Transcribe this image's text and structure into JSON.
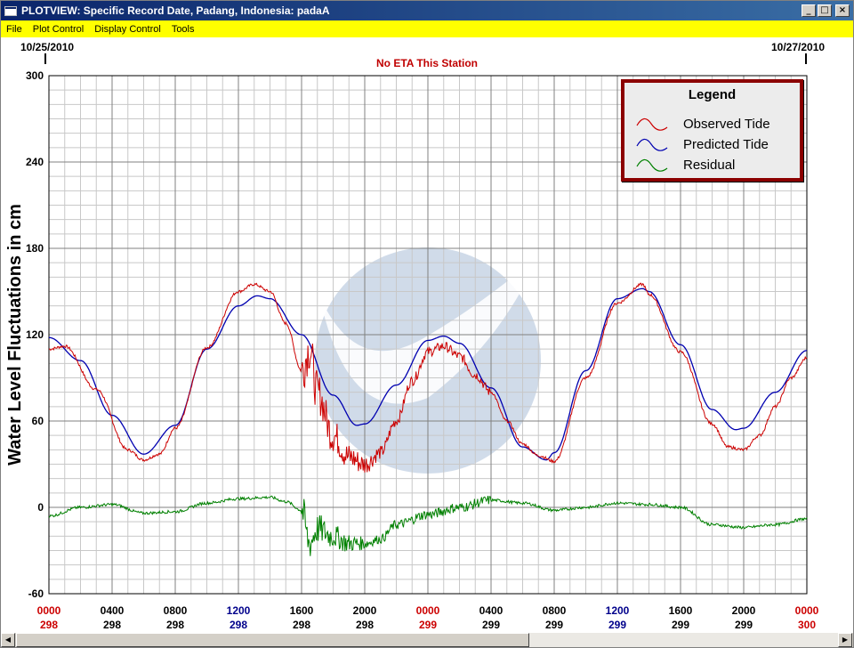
{
  "window": {
    "title": "PLOTVIEW: Specific Record Date, Padang, Indonesia: padaA",
    "controls": {
      "minimize": "_",
      "maximize": "□",
      "close": "×"
    }
  },
  "menu": [
    "File",
    "Plot Control",
    "Display Control",
    "Tools"
  ],
  "header": {
    "start_date": "10/25/2010",
    "end_date": "10/27/2010",
    "eta_text": "No ETA This Station"
  },
  "legend": {
    "title": "Legend",
    "items": [
      {
        "label": "Observed Tide",
        "color": "#cc0000"
      },
      {
        "label": "Predicted Tide",
        "color": "#0000b0"
      },
      {
        "label": "Residual",
        "color": "#008000"
      }
    ]
  },
  "colors": {
    "grid": "#a9a9a9",
    "observed": "#cc0000",
    "predicted": "#0000b0",
    "residual": "#008000",
    "tick_red": "#cc0000",
    "tick_blue": "#00008b"
  },
  "chart_data": {
    "type": "line",
    "ylabel": "Water Level Fluctuations in cm",
    "ylim": [
      -60,
      300
    ],
    "yticks": [
      -60,
      0,
      60,
      120,
      180,
      240,
      300
    ],
    "xlim_hours": [
      0,
      48
    ],
    "xticks": [
      {
        "time": "0000",
        "day": "298",
        "color": "red"
      },
      {
        "time": "0400",
        "day": "298",
        "color": "black"
      },
      {
        "time": "0800",
        "day": "298",
        "color": "black"
      },
      {
        "time": "1200",
        "day": "298",
        "color": "blue"
      },
      {
        "time": "1600",
        "day": "298",
        "color": "black"
      },
      {
        "time": "2000",
        "day": "298",
        "color": "black"
      },
      {
        "time": "0000",
        "day": "299",
        "color": "red"
      },
      {
        "time": "0400",
        "day": "299",
        "color": "black"
      },
      {
        "time": "0800",
        "day": "299",
        "color": "black"
      },
      {
        "time": "1200",
        "day": "299",
        "color": "blue"
      },
      {
        "time": "1600",
        "day": "299",
        "color": "black"
      },
      {
        "time": "2000",
        "day": "299",
        "color": "black"
      },
      {
        "time": "0000",
        "day": "300",
        "color": "red"
      }
    ],
    "grid": true,
    "legend_position": "top-right",
    "series": [
      {
        "name": "Predicted Tide",
        "x": [
          0,
          2,
          4,
          6,
          8,
          10,
          12,
          13.2,
          14,
          16,
          18,
          19.5,
          20,
          22,
          24,
          25,
          26,
          28,
          30,
          31.5,
          32,
          34,
          36,
          37.6,
          38,
          40,
          42,
          43.5,
          44,
          46,
          48
        ],
        "y": [
          118,
          102,
          64,
          37,
          57,
          110,
          140,
          147,
          145,
          120,
          78,
          57,
          58,
          85,
          116,
          119,
          114,
          83,
          42,
          33,
          38,
          95,
          145,
          152,
          150,
          113,
          68,
          54,
          55,
          80,
          109
        ]
      },
      {
        "name": "Observed Tide",
        "x": [
          0,
          1,
          3,
          5,
          6,
          7,
          8,
          10,
          12,
          13,
          14,
          15,
          16,
          16.5,
          17,
          18,
          19,
          20,
          21,
          22,
          23,
          24,
          25,
          26,
          27,
          28,
          29,
          30,
          31,
          32,
          34,
          36,
          37.6,
          38,
          40,
          42,
          43,
          44,
          45,
          46,
          47,
          48
        ],
        "y": [
          110,
          112,
          82,
          40,
          33,
          37,
          55,
          111,
          150,
          155,
          150,
          128,
          95,
          110,
          80,
          50,
          35,
          30,
          38,
          60,
          88,
          108,
          112,
          105,
          92,
          80,
          60,
          44,
          36,
          32,
          90,
          142,
          155,
          148,
          108,
          58,
          42,
          40,
          50,
          70,
          90,
          104
        ]
      },
      {
        "name": "Residual",
        "x": [
          0,
          2,
          4,
          6,
          8,
          10,
          12,
          14,
          15,
          16,
          16.5,
          17,
          18,
          19,
          20,
          21,
          22,
          24,
          26,
          28,
          30,
          32,
          34,
          36,
          38,
          40,
          42,
          44,
          46,
          48
        ],
        "y": [
          -6,
          0,
          2,
          -4,
          -3,
          3,
          6,
          7,
          4,
          -2,
          -25,
          -15,
          -20,
          -25,
          -25,
          -22,
          -12,
          -5,
          0,
          5,
          3,
          -2,
          0,
          3,
          2,
          0,
          -12,
          -14,
          -12,
          -8
        ]
      }
    ]
  }
}
